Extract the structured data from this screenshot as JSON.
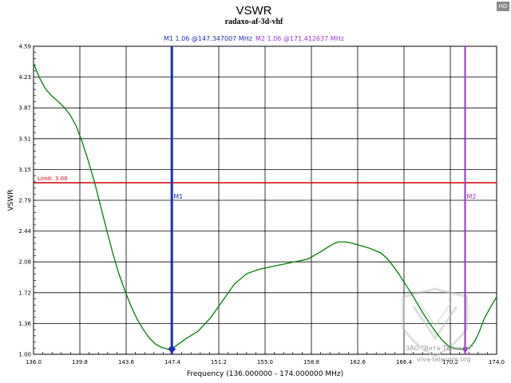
{
  "badge": "HD",
  "colors": {
    "curve": "#008000",
    "m1": "#1a2fb0",
    "m2": "#9b30d0",
    "limit": "#cc0000",
    "grid": "#000000"
  },
  "chart_data": {
    "type": "line",
    "title": "VSWR",
    "subtitle": "radaxo-af-3d-vhf",
    "xlabel": "Frequency (136.000000 - 174.000000 MHz)",
    "ylabel": "VSWR",
    "xlim": [
      136.0,
      174.0
    ],
    "ylim": [
      1.0,
      4.59
    ],
    "x_ticks": [
      "136.0",
      "139.8",
      "143.6",
      "147.4",
      "151.2",
      "155.0",
      "158.8",
      "162.6",
      "166.4",
      "170.2",
      "174.0"
    ],
    "y_ticks": [
      "1.00",
      "1.36",
      "1.72",
      "2.08",
      "2.44",
      "2.79",
      "3.15",
      "3.51",
      "3.87",
      "4.23",
      "4.59"
    ],
    "grid": true,
    "limit": {
      "label": "Limit: 3.00",
      "value": 3.0
    },
    "markers": [
      {
        "name": "M1",
        "legend": "M1  1.06 @147.347007 MHz",
        "x": 147.347007,
        "y": 1.06,
        "color": "#1a2fb0"
      },
      {
        "name": "M2",
        "legend": "M2  1.06 @171.412637 MHz",
        "x": 171.412637,
        "y": 1.06,
        "color": "#9b30d0"
      }
    ],
    "series": [
      {
        "x": [
          136.0,
          136.5,
          137.0,
          137.5,
          138.0,
          138.5,
          139.0,
          139.5,
          140.0,
          140.5,
          141.0,
          141.5,
          142.0,
          142.5,
          143.0,
          143.5,
          144.0,
          144.5,
          145.0,
          145.5,
          146.0,
          146.5,
          147.0,
          147.35,
          147.8,
          148.5,
          149.5,
          150.5,
          151.5,
          152.5,
          153.5,
          154.5,
          155.5,
          156.5,
          157.5,
          158.5,
          159.5,
          160.5,
          161.0,
          161.5,
          162.0,
          162.5,
          163.0,
          163.5,
          164.0,
          164.5,
          165.0,
          165.5,
          166.0,
          166.5,
          167.0,
          167.5,
          168.0,
          168.5,
          169.0,
          169.5,
          170.0,
          170.5,
          171.0,
          171.41,
          171.8,
          172.2,
          172.6,
          173.0,
          173.5,
          174.0
        ],
        "y": [
          4.39,
          4.22,
          4.09,
          4.01,
          3.95,
          3.88,
          3.79,
          3.66,
          3.47,
          3.25,
          3.01,
          2.73,
          2.45,
          2.18,
          1.94,
          1.74,
          1.56,
          1.41,
          1.29,
          1.19,
          1.12,
          1.08,
          1.06,
          1.06,
          1.11,
          1.18,
          1.27,
          1.42,
          1.62,
          1.82,
          1.94,
          1.99,
          2.02,
          2.05,
          2.08,
          2.11,
          2.19,
          2.28,
          2.31,
          2.31,
          2.3,
          2.28,
          2.26,
          2.24,
          2.21,
          2.18,
          2.12,
          2.03,
          1.93,
          1.82,
          1.71,
          1.59,
          1.47,
          1.36,
          1.26,
          1.17,
          1.1,
          1.07,
          1.06,
          1.06,
          1.08,
          1.15,
          1.27,
          1.42,
          1.55,
          1.67
        ]
      }
    ]
  },
  "watermark": {
    "line1": "ЗАО \"Вита-Телеком\"",
    "line2": "viva-telecom.org"
  }
}
